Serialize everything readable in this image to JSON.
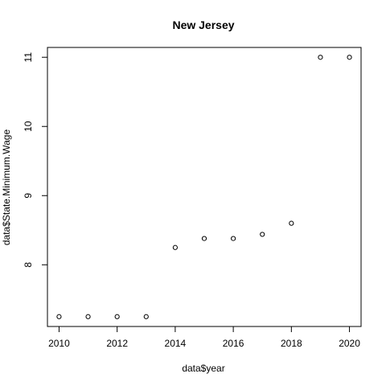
{
  "chart_data": {
    "type": "scatter",
    "title": "New Jersey",
    "xlabel": "data$year",
    "ylabel": "data$State.Minimum.Wage",
    "xlim": [
      2009.6,
      2020.4
    ],
    "ylim": [
      7.108,
      11.142
    ],
    "xticks": [
      2010,
      2012,
      2014,
      2016,
      2018,
      2020
    ],
    "xtick_labels": [
      "2010",
      "2012",
      "2014",
      "2016",
      "2018",
      "2020"
    ],
    "yticks": [
      8,
      9,
      10,
      11
    ],
    "ytick_labels": [
      "8",
      "9",
      "10",
      "11"
    ],
    "grid": false,
    "legend": "none",
    "marker": "open-circle",
    "x": [
      2010,
      2011,
      2012,
      2013,
      2014,
      2015,
      2016,
      2017,
      2018,
      2019,
      2020
    ],
    "y": [
      7.25,
      7.25,
      7.25,
      7.25,
      8.25,
      8.38,
      8.38,
      8.44,
      8.6,
      11.0,
      11.0
    ]
  }
}
